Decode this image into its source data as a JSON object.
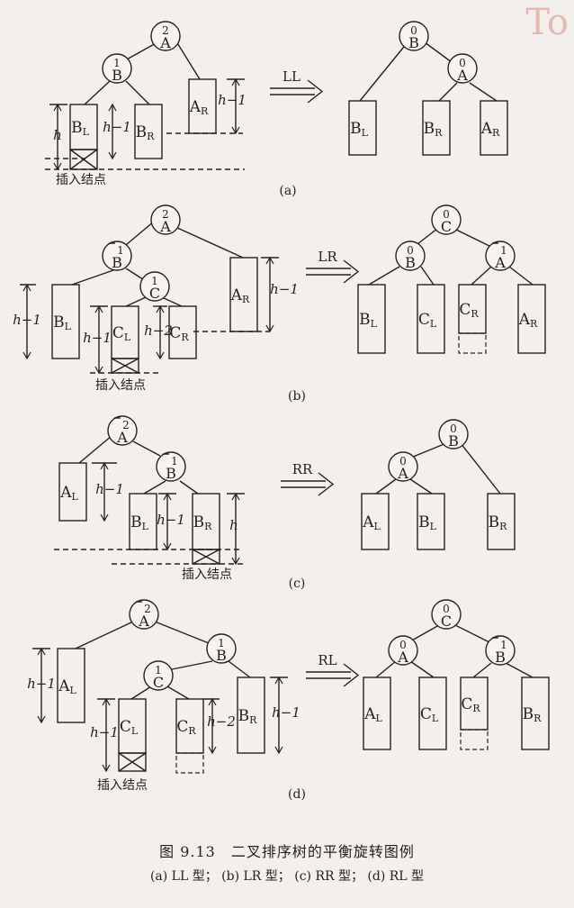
{
  "watermark": "To",
  "caption": "图 9.13　二叉排序树的平衡旋转图例",
  "subcaption": "(a) LL 型；  (b) LR 型；  (c) RR 型；  (d) RL 型",
  "panels": {
    "a": {
      "label": "(a)",
      "op": "LL",
      "insert_label": "插入结点",
      "dims": {
        "h1": "h",
        "h2": "h-1",
        "h3": "h-1"
      },
      "before": {
        "A": {
          "name": "A",
          "bf": "2"
        },
        "B": {
          "name": "B",
          "bf": "1"
        },
        "BL": "BL",
        "BR": "BR",
        "AR": "AR"
      },
      "after": {
        "B": {
          "name": "B",
          "bf": "0"
        },
        "A": {
          "name": "A",
          "bf": "0"
        },
        "BL": "BL",
        "BR": "BR",
        "AR": "AR"
      }
    },
    "b": {
      "label": "(b)",
      "op": "LR",
      "insert_label": "插入结点",
      "dims": {
        "h1": "h-1",
        "h2": "h-1",
        "h3": "h-2",
        "h4": "h-1"
      },
      "before": {
        "A": {
          "name": "A",
          "bf": "2"
        },
        "B": {
          "name": "B",
          "bf": "-1"
        },
        "C": {
          "name": "C",
          "bf": "1"
        },
        "BL": "BL",
        "CL": "CL",
        "CR": "CR",
        "AR": "AR"
      },
      "after": {
        "C": {
          "name": "C",
          "bf": "0"
        },
        "B": {
          "name": "B",
          "bf": "0"
        },
        "A": {
          "name": "A",
          "bf": "-1"
        },
        "BL": "BL",
        "CL": "CL",
        "CR": "CR",
        "AR": "AR"
      }
    },
    "c": {
      "label": "(c)",
      "op": "RR",
      "insert_label": "插入结点",
      "dims": {
        "h1": "h-1",
        "h2": "h-1",
        "h3": "h"
      },
      "before": {
        "A": {
          "name": "A",
          "bf": "-2"
        },
        "B": {
          "name": "B",
          "bf": "-1"
        },
        "AL": "AL",
        "BL": "BL",
        "BR": "BR"
      },
      "after": {
        "B": {
          "name": "B",
          "bf": "0"
        },
        "A": {
          "name": "A",
          "bf": "0"
        },
        "AL": "AL",
        "BL": "BL",
        "BR": "BR"
      }
    },
    "d": {
      "label": "(d)",
      "op": "RL",
      "insert_label": "插入结点",
      "dims": {
        "h1": "h-1",
        "h2": "h-1",
        "h3": "h-2",
        "h4": "h-1"
      },
      "before": {
        "A": {
          "name": "A",
          "bf": "-2"
        },
        "B": {
          "name": "B",
          "bf": "1"
        },
        "C": {
          "name": "C",
          "bf": "1"
        },
        "AL": "AL",
        "CL": "CL",
        "CR": "CR",
        "BR": "BR"
      },
      "after": {
        "C": {
          "name": "C",
          "bf": "0"
        },
        "A": {
          "name": "A",
          "bf": "0"
        },
        "B": {
          "name": "B",
          "bf": "-1"
        },
        "AL": "AL",
        "CL": "CL",
        "CR": "CR",
        "BR": "BR"
      }
    }
  }
}
